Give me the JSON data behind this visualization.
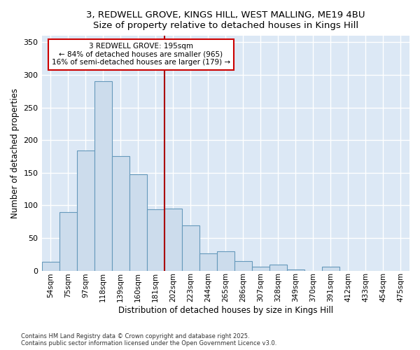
{
  "title_line1": "3, REDWELL GROVE, KINGS HILL, WEST MALLING, ME19 4BU",
  "title_line2": "Size of property relative to detached houses in Kings Hill",
  "xlabel": "Distribution of detached houses by size in Kings Hill",
  "ylabel": "Number of detached properties",
  "bar_color": "#ccdcec",
  "bar_edgecolor": "#6699bb",
  "background_color": "#dce8f5",
  "fig_background": "#ffffff",
  "grid_color": "#ffffff",
  "categories": [
    "54sqm",
    "75sqm",
    "97sqm",
    "118sqm",
    "139sqm",
    "160sqm",
    "181sqm",
    "202sqm",
    "223sqm",
    "244sqm",
    "265sqm",
    "286sqm",
    "307sqm",
    "328sqm",
    "349sqm",
    "370sqm",
    "391sqm",
    "412sqm",
    "433sqm",
    "454sqm",
    "475sqm"
  ],
  "values": [
    13,
    90,
    184,
    290,
    176,
    148,
    94,
    95,
    69,
    26,
    30,
    14,
    6,
    9,
    2,
    0,
    6,
    0,
    0,
    0,
    0
  ],
  "ylim": [
    0,
    360
  ],
  "yticks": [
    0,
    50,
    100,
    150,
    200,
    250,
    300,
    350
  ],
  "vline_index": 7,
  "vline_color": "#aa0000",
  "annotation_title": "3 REDWELL GROVE: 195sqm",
  "annotation_line1": "← 84% of detached houses are smaller (965)",
  "annotation_line2": "16% of semi-detached houses are larger (179) →",
  "annotation_box_color": "#cc0000",
  "footer_line1": "Contains HM Land Registry data © Crown copyright and database right 2025.",
  "footer_line2": "Contains public sector information licensed under the Open Government Licence v3.0."
}
